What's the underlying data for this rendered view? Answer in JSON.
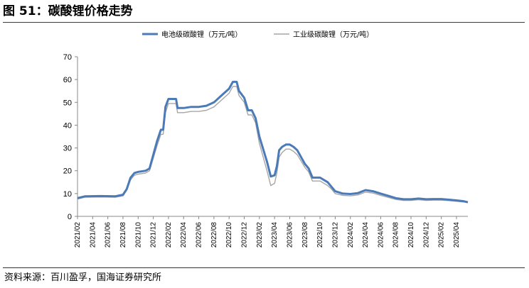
{
  "figure": {
    "title": "图 51：碳酸锂价格走势",
    "source": "资料来源：百川盈孚，国海证券研究所"
  },
  "colors": {
    "battery": "#4a7ab8",
    "industrial": "#a6a6a6",
    "axis": "#888888"
  },
  "chart_data": {
    "type": "line",
    "title": "",
    "xlabel": "",
    "ylabel": "",
    "ylim": [
      0,
      70
    ],
    "yticks": [
      0,
      10,
      20,
      30,
      40,
      50,
      60,
      70
    ],
    "grid": false,
    "legend_position": "top-center",
    "xticks": [
      "2021/02",
      "2021/04",
      "2021/06",
      "2021/08",
      "2021/10",
      "2021/12",
      "2022/02",
      "2022/04",
      "2022/06",
      "2022/08",
      "2022/10",
      "2022/12",
      "2023/02",
      "2023/04",
      "2023/06",
      "2023/08",
      "2023/10",
      "2023/12",
      "2024/02",
      "2024/04",
      "2024/06",
      "2024/08",
      "2024/10",
      "2024/12",
      "2025/02",
      "2025/04"
    ],
    "series": [
      {
        "name": "电池级碳酸锂（万元/吨）",
        "points": [
          [
            "2021/02",
            8.0
          ],
          [
            "2021/03",
            8.8
          ],
          [
            "2021/05",
            8.9
          ],
          [
            "2021/07",
            8.8
          ],
          [
            "2021/08",
            9.5
          ],
          [
            "2021/08.5",
            12.0
          ],
          [
            "2021/09",
            17.0
          ],
          [
            "2021/09.5",
            19.0
          ],
          [
            "2021/10",
            19.5
          ],
          [
            "2021/11",
            20.0
          ],
          [
            "2021/11.5",
            21.0
          ],
          [
            "2021/12",
            27.0
          ],
          [
            "2021/12.5",
            33.0
          ],
          [
            "2022/01",
            38.0
          ],
          [
            "2022/01.3",
            38.0
          ],
          [
            "2022/01.6",
            48.0
          ],
          [
            "2022/02",
            51.5
          ],
          [
            "2022/03",
            51.5
          ],
          [
            "2022/03.2",
            47.5
          ],
          [
            "2022/04",
            47.5
          ],
          [
            "2022/05",
            48.0
          ],
          [
            "2022/06",
            48.0
          ],
          [
            "2022/07",
            48.5
          ],
          [
            "2022/08",
            50.0
          ],
          [
            "2022/09",
            53.0
          ],
          [
            "2022/10",
            56.0
          ],
          [
            "2022/10.5",
            59.0
          ],
          [
            "2022/11",
            59.0
          ],
          [
            "2022/11.3",
            55.0
          ],
          [
            "2022/12",
            52.0
          ],
          [
            "2022/12.5",
            46.5
          ],
          [
            "2023/01",
            46.5
          ],
          [
            "2023/01.5",
            43.0
          ],
          [
            "2023/02",
            35.0
          ],
          [
            "2023/03",
            24.0
          ],
          [
            "2023/03.5",
            17.5
          ],
          [
            "2023/04",
            18.0
          ],
          [
            "2023/04.3",
            22.0
          ],
          [
            "2023/04.6",
            29.0
          ],
          [
            "2023/05",
            30.5
          ],
          [
            "2023/05.5",
            31.5
          ],
          [
            "2023/06",
            31.5
          ],
          [
            "2023/06.5",
            30.5
          ],
          [
            "2023/07",
            29.0
          ],
          [
            "2023/08",
            23.0
          ],
          [
            "2023/08.5",
            21.0
          ],
          [
            "2023/09",
            17.0
          ],
          [
            "2023/10",
            17.0
          ],
          [
            "2023/11",
            15.0
          ],
          [
            "2023/11.5",
            13.0
          ],
          [
            "2023/12",
            11.0
          ],
          [
            "2024/01",
            10.0
          ],
          [
            "2024/02",
            9.8
          ],
          [
            "2024/03",
            10.2
          ],
          [
            "2024/04",
            11.5
          ],
          [
            "2024/05",
            11.0
          ],
          [
            "2024/06",
            10.0
          ],
          [
            "2024/07",
            9.0
          ],
          [
            "2024/08",
            8.0
          ],
          [
            "2024/09",
            7.5
          ],
          [
            "2024/10",
            7.5
          ],
          [
            "2024/11",
            7.8
          ],
          [
            "2024/12",
            7.5
          ],
          [
            "2025/01",
            7.6
          ],
          [
            "2025/02",
            7.6
          ],
          [
            "2025/03",
            7.3
          ],
          [
            "2025/04",
            7.0
          ],
          [
            "2025/05",
            6.6
          ],
          [
            "2025/05.5",
            6.2
          ]
        ]
      },
      {
        "name": "工业级碳酸锂（万元/吨）",
        "points": [
          [
            "2021/02",
            7.6
          ],
          [
            "2021/03",
            8.4
          ],
          [
            "2021/05",
            8.5
          ],
          [
            "2021/07",
            8.4
          ],
          [
            "2021/08",
            9.0
          ],
          [
            "2021/08.5",
            11.5
          ],
          [
            "2021/09",
            16.0
          ],
          [
            "2021/09.5",
            18.0
          ],
          [
            "2021/10",
            18.5
          ],
          [
            "2021/11",
            19.0
          ],
          [
            "2021/11.5",
            20.0
          ],
          [
            "2021/12",
            25.5
          ],
          [
            "2021/12.5",
            31.0
          ],
          [
            "2022/01",
            36.0
          ],
          [
            "2022/01.3",
            36.0
          ],
          [
            "2022/01.6",
            45.5
          ],
          [
            "2022/02",
            49.5
          ],
          [
            "2022/03",
            49.5
          ],
          [
            "2022/03.2",
            45.5
          ],
          [
            "2022/04",
            45.5
          ],
          [
            "2022/05",
            46.0
          ],
          [
            "2022/06",
            46.0
          ],
          [
            "2022/07",
            46.5
          ],
          [
            "2022/08",
            48.0
          ],
          [
            "2022/09",
            51.0
          ],
          [
            "2022/10",
            54.0
          ],
          [
            "2022/10.5",
            57.0
          ],
          [
            "2022/11",
            57.0
          ],
          [
            "2022/11.3",
            53.0
          ],
          [
            "2022/12",
            50.0
          ],
          [
            "2022/12.5",
            44.5
          ],
          [
            "2023/01",
            44.5
          ],
          [
            "2023/01.5",
            41.0
          ],
          [
            "2023/02",
            32.0
          ],
          [
            "2023/03",
            20.0
          ],
          [
            "2023/03.5",
            13.5
          ],
          [
            "2023/04",
            14.5
          ],
          [
            "2023/04.3",
            19.0
          ],
          [
            "2023/04.6",
            26.0
          ],
          [
            "2023/05",
            28.0
          ],
          [
            "2023/05.5",
            29.5
          ],
          [
            "2023/06",
            29.5
          ],
          [
            "2023/06.5",
            28.5
          ],
          [
            "2023/07",
            27.0
          ],
          [
            "2023/08",
            21.5
          ],
          [
            "2023/08.5",
            19.5
          ],
          [
            "2023/09",
            15.5
          ],
          [
            "2023/10",
            15.5
          ],
          [
            "2023/11",
            13.5
          ],
          [
            "2023/11.5",
            12.0
          ],
          [
            "2023/12",
            10.0
          ],
          [
            "2024/01",
            9.2
          ],
          [
            "2024/02",
            9.0
          ],
          [
            "2024/03",
            9.4
          ],
          [
            "2024/04",
            10.6
          ],
          [
            "2024/05",
            10.2
          ],
          [
            "2024/06",
            9.2
          ],
          [
            "2024/07",
            8.3
          ],
          [
            "2024/08",
            7.4
          ],
          [
            "2024/09",
            7.0
          ],
          [
            "2024/10",
            7.0
          ],
          [
            "2024/11",
            7.3
          ],
          [
            "2024/12",
            7.0
          ],
          [
            "2025/01",
            7.1
          ],
          [
            "2025/02",
            7.1
          ],
          [
            "2025/03",
            6.9
          ],
          [
            "2025/04",
            6.6
          ],
          [
            "2025/05",
            6.3
          ],
          [
            "2025/05.5",
            6.0
          ]
        ]
      }
    ]
  }
}
